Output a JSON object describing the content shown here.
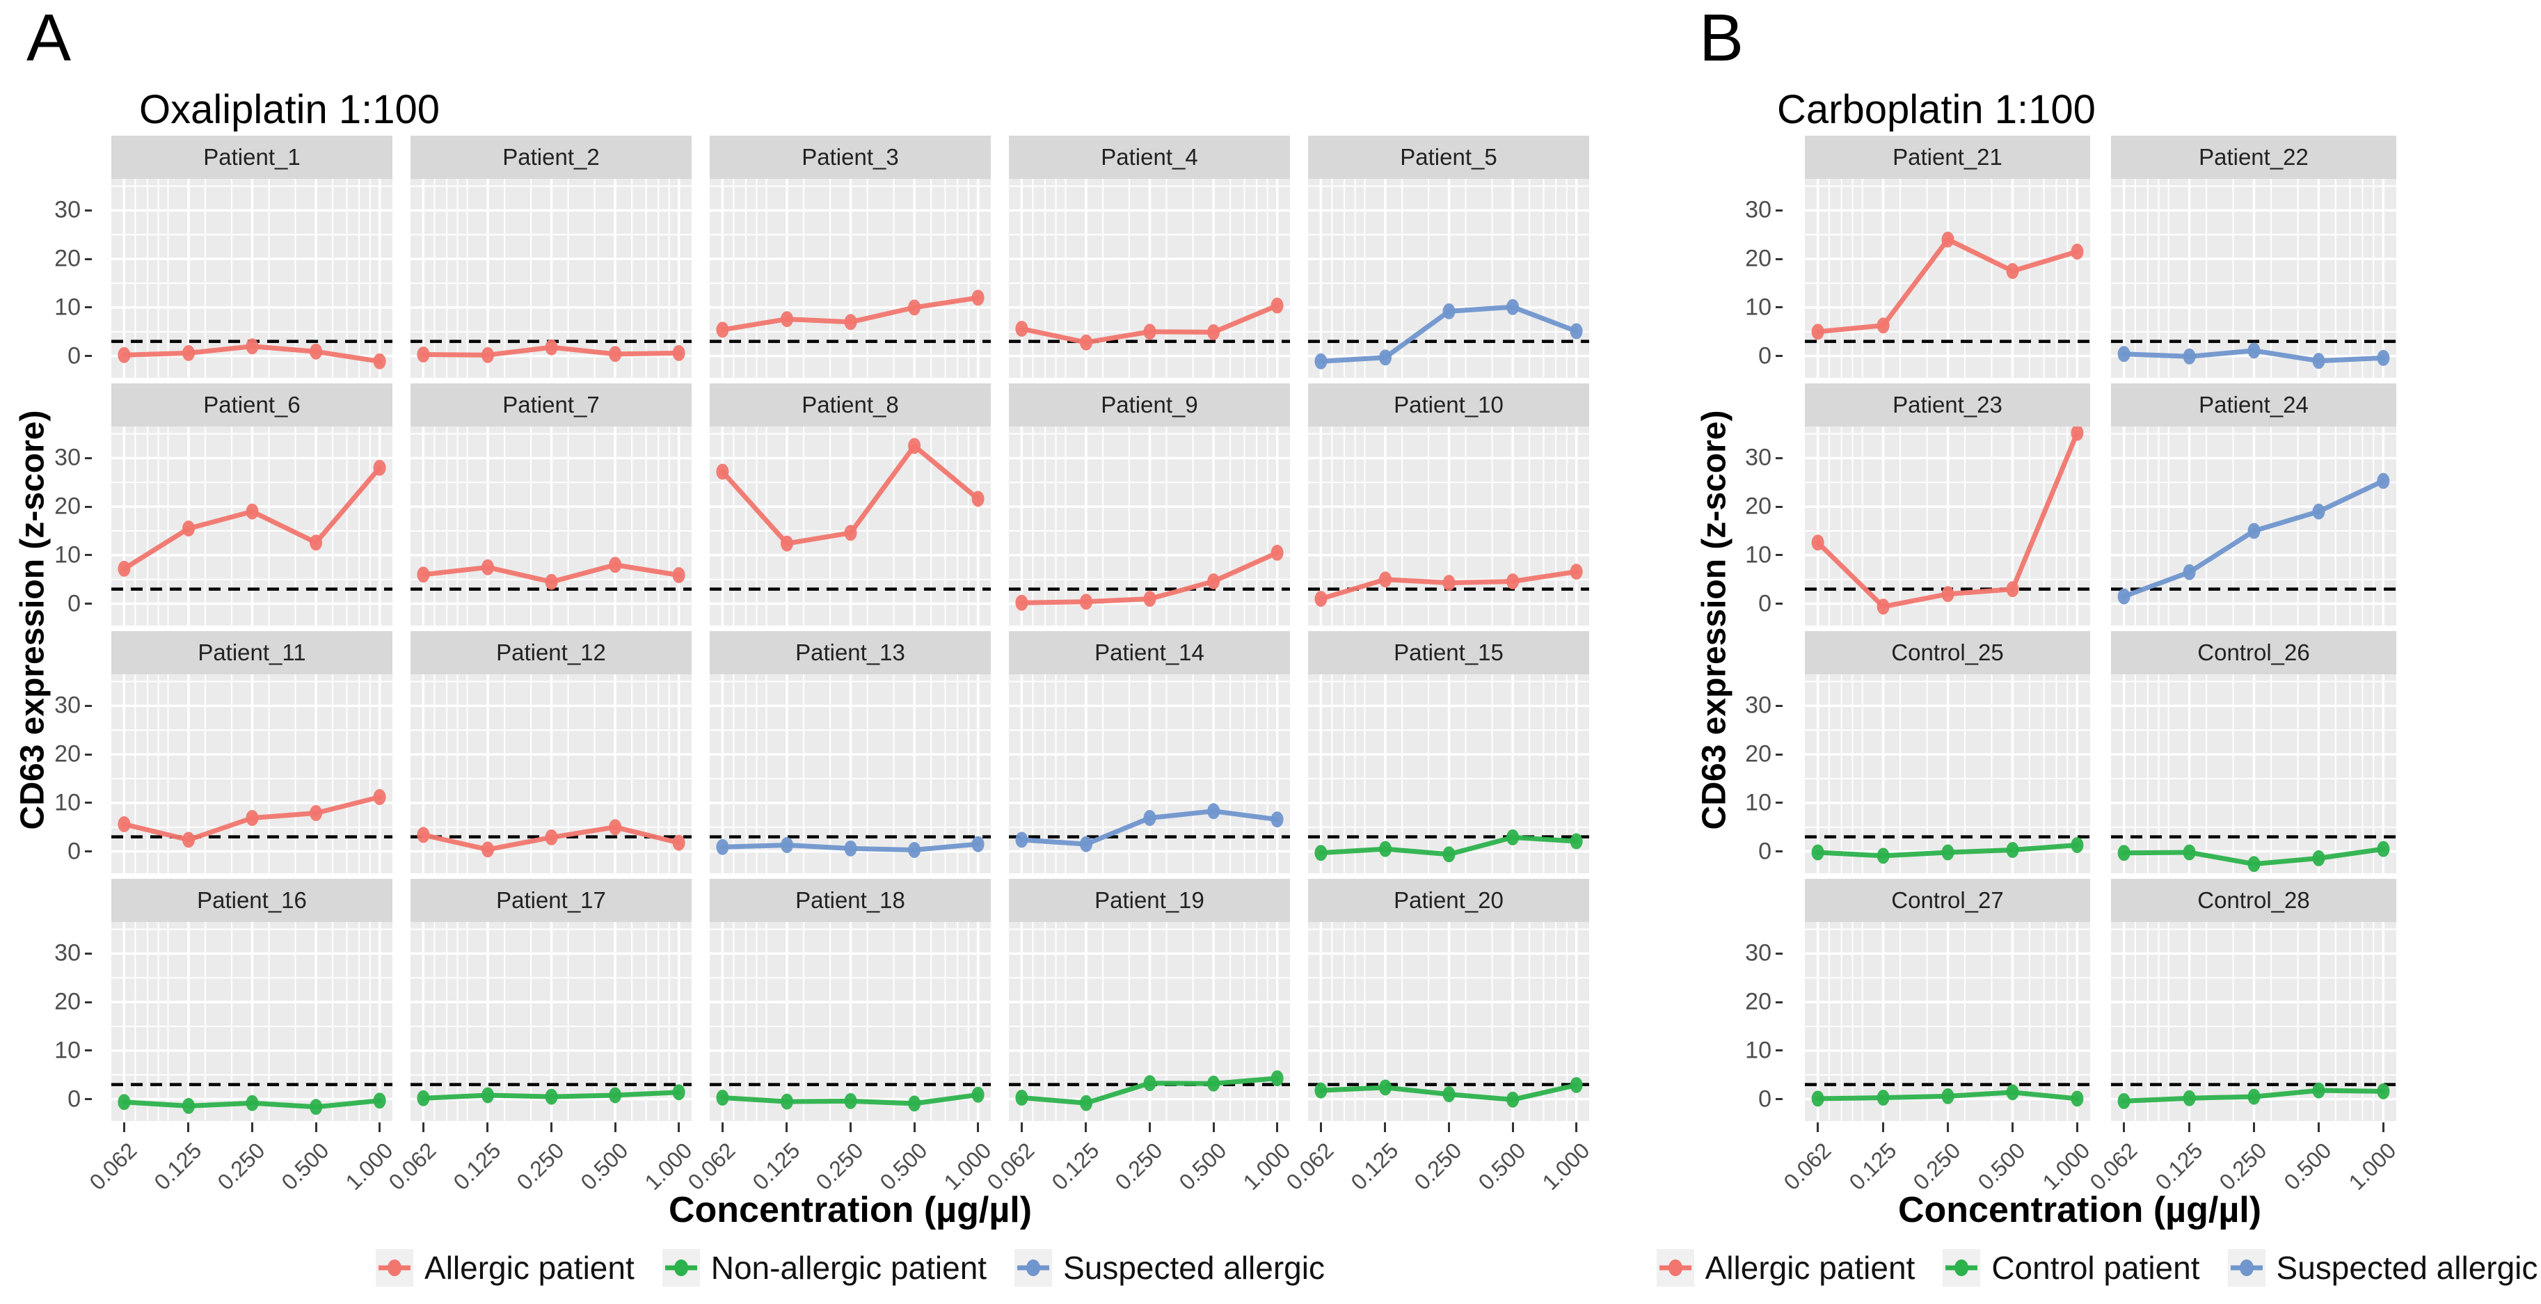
{
  "chart_data": [
    {
      "type": "line",
      "panel_label": "A",
      "title": "Oxaliplatin 1:100",
      "xlabel": "Concentration (µg/µl)",
      "ylabel": "CD63 expression (z-score)",
      "x_scale": "log10",
      "x_values": [
        0.062,
        0.125,
        0.25,
        0.5,
        1.0
      ],
      "x_tick_labels": [
        "0.062",
        "0.125",
        "0.250",
        "0.500",
        "1.000"
      ],
      "x_minor_gridlines": [
        0.07,
        0.08,
        0.09,
        0.1,
        0.15,
        0.2,
        0.3,
        0.4,
        0.6,
        0.7,
        0.8,
        0.9
      ],
      "y_ticks": [
        0,
        10,
        20,
        30
      ],
      "y_minor_gridlines": [
        5,
        15,
        25,
        35
      ],
      "ylim": [
        -4.5,
        36.5
      ],
      "threshold_dashed_y": 3,
      "grid": true,
      "legend_position": "bottom",
      "layout": {
        "ncols": 5,
        "facet_width": 404
      },
      "legend": [
        {
          "group": "allergic",
          "label": "Allergic patient",
          "color": "#F1766E"
        },
        {
          "group": "non_allergic",
          "label": "Non-allergic patient",
          "color": "#2CB24C"
        },
        {
          "group": "suspected",
          "label": "Suspected allergic",
          "color": "#7096CD"
        }
      ],
      "facets": [
        {
          "name": "Patient_1",
          "group": "allergic",
          "y": [
            0.2,
            0.6,
            2.0,
            0.9,
            -1.1
          ]
        },
        {
          "name": "Patient_2",
          "group": "allergic",
          "y": [
            0.3,
            0.2,
            1.8,
            0.4,
            0.6
          ]
        },
        {
          "name": "Patient_3",
          "group": "allergic",
          "y": [
            5.4,
            7.6,
            7.0,
            10.0,
            12.0
          ]
        },
        {
          "name": "Patient_4",
          "group": "allergic",
          "y": [
            5.6,
            2.8,
            5.0,
            4.9,
            10.4
          ]
        },
        {
          "name": "Patient_5",
          "group": "suspected",
          "y": [
            -1.1,
            -0.3,
            9.2,
            10.1,
            5.1
          ]
        },
        {
          "name": "Patient_6",
          "group": "allergic",
          "y": [
            7.2,
            15.5,
            19.0,
            12.6,
            28.0
          ]
        },
        {
          "name": "Patient_7",
          "group": "allergic",
          "y": [
            6.0,
            7.5,
            4.5,
            8.0,
            5.9
          ]
        },
        {
          "name": "Patient_8",
          "group": "allergic",
          "y": [
            27.2,
            12.4,
            14.6,
            32.5,
            21.6
          ]
        },
        {
          "name": "Patient_9",
          "group": "allergic",
          "y": [
            0.2,
            0.4,
            1.0,
            4.6,
            10.5
          ]
        },
        {
          "name": "Patient_10",
          "group": "allergic",
          "y": [
            1.0,
            5.0,
            4.3,
            4.6,
            6.6
          ]
        },
        {
          "name": "Patient_11",
          "group": "allergic",
          "y": [
            5.6,
            2.4,
            6.9,
            7.9,
            11.2
          ]
        },
        {
          "name": "Patient_12",
          "group": "allergic",
          "y": [
            3.4,
            0.4,
            2.9,
            5.0,
            1.8
          ]
        },
        {
          "name": "Patient_13",
          "group": "suspected",
          "y": [
            0.9,
            1.3,
            0.6,
            0.3,
            1.5
          ]
        },
        {
          "name": "Patient_14",
          "group": "suspected",
          "y": [
            2.4,
            1.5,
            6.9,
            8.3,
            6.6
          ]
        },
        {
          "name": "Patient_15",
          "group": "non_allergic",
          "y": [
            -0.3,
            0.5,
            -0.6,
            2.9,
            2.1
          ]
        },
        {
          "name": "Patient_16",
          "group": "non_allergic",
          "y": [
            -0.6,
            -1.4,
            -0.8,
            -1.6,
            -0.3
          ]
        },
        {
          "name": "Patient_17",
          "group": "non_allergic",
          "y": [
            0.2,
            0.8,
            0.5,
            0.8,
            1.4
          ]
        },
        {
          "name": "Patient_18",
          "group": "non_allergic",
          "y": [
            0.3,
            -0.5,
            -0.4,
            -0.9,
            0.9
          ]
        },
        {
          "name": "Patient_19",
          "group": "non_allergic",
          "y": [
            0.3,
            -0.8,
            3.3,
            3.2,
            4.3
          ]
        },
        {
          "name": "Patient_20",
          "group": "non_allergic",
          "y": [
            1.8,
            2.4,
            1.0,
            -0.1,
            2.9
          ]
        }
      ]
    },
    {
      "type": "line",
      "panel_label": "B",
      "title": "Carboplatin 1:100",
      "xlabel": "Concentration (µg/µl)",
      "ylabel": "CD63 expression (z-score)",
      "x_scale": "log10",
      "x_values": [
        0.062,
        0.125,
        0.25,
        0.5,
        1.0
      ],
      "x_tick_labels": [
        "0.062",
        "0.125",
        "0.250",
        "0.500",
        "1.000"
      ],
      "x_minor_gridlines": [
        0.07,
        0.08,
        0.09,
        0.1,
        0.15,
        0.2,
        0.3,
        0.4,
        0.6,
        0.7,
        0.8,
        0.9
      ],
      "y_ticks": [
        0,
        10,
        20,
        30
      ],
      "y_minor_gridlines": [
        5,
        15,
        25,
        35
      ],
      "ylim": [
        -4.5,
        36.5
      ],
      "threshold_dashed_y": 3,
      "grid": true,
      "legend_position": "bottom",
      "layout": {
        "ncols": 2,
        "facet_width": 410
      },
      "legend": [
        {
          "group": "allergic",
          "label": "Allergic patient",
          "color": "#F1766E"
        },
        {
          "group": "control",
          "label": "Control patient",
          "color": "#2CB24C"
        },
        {
          "group": "suspected",
          "label": "Suspected allergic",
          "color": "#7096CD"
        }
      ],
      "facets": [
        {
          "name": "Patient_21",
          "group": "allergic",
          "y": [
            5.0,
            6.3,
            24.0,
            17.5,
            21.5
          ]
        },
        {
          "name": "Patient_22",
          "group": "suspected",
          "y": [
            0.4,
            -0.1,
            1.1,
            -1.0,
            -0.4
          ]
        },
        {
          "name": "Patient_23",
          "group": "allergic",
          "y": [
            12.6,
            -0.6,
            2.0,
            3.0,
            35.2
          ]
        },
        {
          "name": "Patient_24",
          "group": "suspected",
          "y": [
            1.5,
            6.5,
            15.0,
            19.0,
            25.3
          ]
        },
        {
          "name": "Control_25",
          "group": "control",
          "y": [
            -0.2,
            -0.9,
            -0.2,
            0.3,
            1.3
          ]
        },
        {
          "name": "Control_26",
          "group": "control",
          "y": [
            -0.3,
            -0.2,
            -2.6,
            -1.4,
            0.5
          ]
        },
        {
          "name": "Control_27",
          "group": "control",
          "y": [
            0.1,
            0.3,
            0.6,
            1.4,
            0.1
          ]
        },
        {
          "name": "Control_28",
          "group": "control",
          "y": [
            -0.4,
            0.2,
            0.5,
            1.8,
            1.6
          ]
        }
      ]
    }
  ],
  "style_colors": {
    "panel_background": "#EBEBEB",
    "strip_background": "#D8D8D8",
    "gridline": "#FFFFFF",
    "threshold_line": "#000000",
    "axis_text": "#4D4D4D"
  }
}
